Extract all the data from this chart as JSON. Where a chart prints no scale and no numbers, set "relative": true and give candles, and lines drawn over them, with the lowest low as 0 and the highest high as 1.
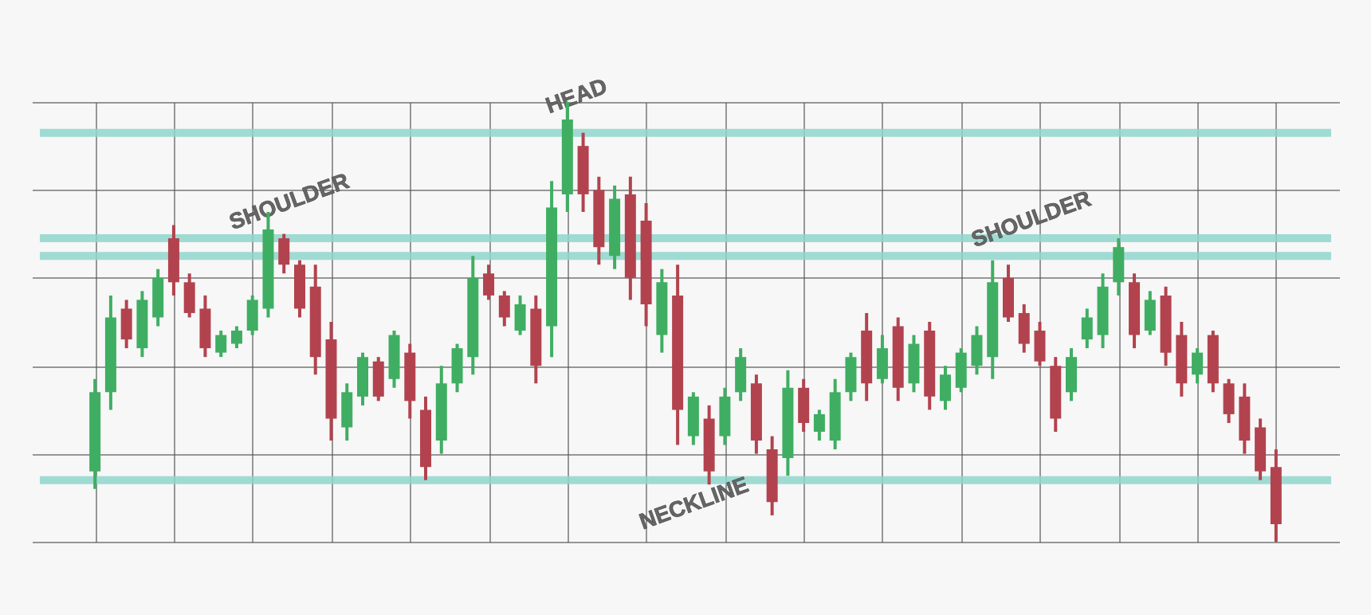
{
  "chart_data": {
    "type": "candlestick",
    "relative": true,
    "grid": true,
    "tick_labels": false,
    "categories": [
      null,
      null,
      null,
      null,
      null,
      null,
      null,
      null,
      null,
      null,
      null,
      null,
      null,
      null,
      null,
      null,
      null,
      null,
      null,
      null,
      null,
      null,
      null,
      null,
      null,
      null,
      null,
      null,
      null,
      null,
      null,
      null,
      null,
      null,
      null,
      null,
      null,
      null,
      null,
      null,
      null,
      null,
      null,
      null,
      null,
      null,
      null,
      null,
      null,
      null,
      null,
      null,
      null,
      null,
      null,
      null,
      null,
      null,
      null,
      null,
      null,
      null,
      null,
      null,
      null,
      null,
      null,
      null,
      null,
      null,
      null,
      null,
      null,
      null,
      null,
      null
    ],
    "ohlc": [
      [
        0.16,
        0.37,
        0.12,
        0.34
      ],
      [
        0.34,
        0.56,
        0.3,
        0.51
      ],
      [
        0.53,
        0.55,
        0.44,
        0.46
      ],
      [
        0.44,
        0.57,
        0.42,
        0.55
      ],
      [
        0.51,
        0.62,
        0.49,
        0.6
      ],
      [
        0.69,
        0.72,
        0.56,
        0.59
      ],
      [
        0.59,
        0.61,
        0.51,
        0.52
      ],
      [
        0.53,
        0.56,
        0.42,
        0.44
      ],
      [
        0.43,
        0.48,
        0.42,
        0.47
      ],
      [
        0.45,
        0.49,
        0.44,
        0.48
      ],
      [
        0.48,
        0.56,
        0.47,
        0.55
      ],
      [
        0.53,
        0.75,
        0.51,
        0.71
      ],
      [
        0.69,
        0.7,
        0.61,
        0.63
      ],
      [
        0.63,
        0.64,
        0.51,
        0.53
      ],
      [
        0.58,
        0.63,
        0.38,
        0.42
      ],
      [
        0.46,
        0.5,
        0.23,
        0.28
      ],
      [
        0.26,
        0.36,
        0.23,
        0.34
      ],
      [
        0.33,
        0.43,
        0.31,
        0.42
      ],
      [
        0.41,
        0.42,
        0.32,
        0.33
      ],
      [
        0.37,
        0.48,
        0.35,
        0.47
      ],
      [
        0.43,
        0.45,
        0.28,
        0.32
      ],
      [
        0.3,
        0.33,
        0.14,
        0.17
      ],
      [
        0.23,
        0.4,
        0.2,
        0.36
      ],
      [
        0.36,
        0.45,
        0.34,
        0.44
      ],
      [
        0.42,
        0.65,
        0.38,
        0.6
      ],
      [
        0.61,
        0.63,
        0.55,
        0.56
      ],
      [
        0.56,
        0.57,
        0.49,
        0.51
      ],
      [
        0.48,
        0.56,
        0.47,
        0.54
      ],
      [
        0.53,
        0.56,
        0.36,
        0.4
      ],
      [
        0.49,
        0.82,
        0.42,
        0.76
      ],
      [
        0.79,
        1.0,
        0.75,
        0.96
      ],
      [
        0.9,
        0.93,
        0.75,
        0.79
      ],
      [
        0.8,
        0.83,
        0.63,
        0.67
      ],
      [
        0.65,
        0.81,
        0.62,
        0.78
      ],
      [
        0.79,
        0.83,
        0.55,
        0.6
      ],
      [
        0.73,
        0.77,
        0.49,
        0.54
      ],
      [
        0.47,
        0.62,
        0.43,
        0.59
      ],
      [
        0.56,
        0.63,
        0.22,
        0.3
      ],
      [
        0.24,
        0.34,
        0.22,
        0.33
      ],
      [
        0.28,
        0.31,
        0.13,
        0.16
      ],
      [
        0.24,
        0.35,
        0.22,
        0.33
      ],
      [
        0.34,
        0.44,
        0.32,
        0.42
      ],
      [
        0.36,
        0.38,
        0.2,
        0.23
      ],
      [
        0.21,
        0.24,
        0.06,
        0.09
      ],
      [
        0.19,
        0.39,
        0.15,
        0.35
      ],
      [
        0.35,
        0.37,
        0.25,
        0.27
      ],
      [
        0.25,
        0.3,
        0.23,
        0.29
      ],
      [
        0.23,
        0.37,
        0.21,
        0.34
      ],
      [
        0.34,
        0.43,
        0.32,
        0.42
      ],
      [
        0.48,
        0.52,
        0.32,
        0.36
      ],
      [
        0.37,
        0.47,
        0.36,
        0.44
      ],
      [
        0.49,
        0.51,
        0.32,
        0.35
      ],
      [
        0.36,
        0.47,
        0.34,
        0.45
      ],
      [
        0.48,
        0.5,
        0.3,
        0.33
      ],
      [
        0.32,
        0.4,
        0.3,
        0.38
      ],
      [
        0.35,
        0.44,
        0.34,
        0.43
      ],
      [
        0.4,
        0.49,
        0.38,
        0.47
      ],
      [
        0.42,
        0.64,
        0.37,
        0.59
      ],
      [
        0.6,
        0.63,
        0.5,
        0.51
      ],
      [
        0.52,
        0.54,
        0.43,
        0.45
      ],
      [
        0.48,
        0.5,
        0.4,
        0.41
      ],
      [
        0.4,
        0.42,
        0.25,
        0.28
      ],
      [
        0.34,
        0.44,
        0.32,
        0.42
      ],
      [
        0.46,
        0.53,
        0.44,
        0.51
      ],
      [
        0.47,
        0.61,
        0.44,
        0.58
      ],
      [
        0.59,
        0.69,
        0.56,
        0.67
      ],
      [
        0.59,
        0.61,
        0.44,
        0.47
      ],
      [
        0.48,
        0.57,
        0.47,
        0.55
      ],
      [
        0.56,
        0.58,
        0.4,
        0.43
      ],
      [
        0.47,
        0.5,
        0.33,
        0.36
      ],
      [
        0.38,
        0.44,
        0.36,
        0.43
      ],
      [
        0.47,
        0.48,
        0.34,
        0.36
      ],
      [
        0.36,
        0.37,
        0.27,
        0.29
      ],
      [
        0.33,
        0.36,
        0.2,
        0.23
      ],
      [
        0.26,
        0.28,
        0.14,
        0.16
      ],
      [
        0.17,
        0.21,
        0.0,
        0.04
      ]
    ],
    "colors": [
      "#3fae62",
      "#3fae62",
      "#b2434e",
      "#3fae62",
      "#3fae62",
      "#b2434e",
      "#b2434e",
      "#b2434e",
      "#3fae62",
      "#3fae62",
      "#3fae62",
      "#3fae62",
      "#b2434e",
      "#b2434e",
      "#b2434e",
      "#b2434e",
      "#3fae62",
      "#3fae62",
      "#b2434e",
      "#3fae62",
      "#b2434e",
      "#b2434e",
      "#3fae62",
      "#3fae62",
      "#3fae62",
      "#b2434e",
      "#b2434e",
      "#3fae62",
      "#b2434e",
      "#3fae62",
      "#3fae62",
      "#b2434e",
      "#b2434e",
      "#3fae62",
      "#b2434e",
      "#b2434e",
      "#3fae62",
      "#b2434e",
      "#3fae62",
      "#b2434e",
      "#3fae62",
      "#3fae62",
      "#b2434e",
      "#b2434e",
      "#3fae62",
      "#b2434e",
      "#3fae62",
      "#3fae62",
      "#3fae62",
      "#b2434e",
      "#3fae62",
      "#b2434e",
      "#3fae62",
      "#b2434e",
      "#3fae62",
      "#3fae62",
      "#3fae62",
      "#3fae62",
      "#b2434e",
      "#b2434e",
      "#b2434e",
      "#b2434e",
      "#3fae62",
      "#3fae62",
      "#3fae62",
      "#3fae62",
      "#b2434e",
      "#3fae62",
      "#b2434e",
      "#b2434e",
      "#3fae62",
      "#b2434e",
      "#b2434e",
      "#b2434e",
      "#b2434e",
      "#b2434e"
    ],
    "ref_lines": [
      {
        "axis": "y",
        "value": 0.69,
        "label": "SHOULDER",
        "color": "#8fd6cc"
      },
      {
        "axis": "y",
        "value": 0.93,
        "label": "HEAD",
        "color": "#8fd6cc"
      },
      {
        "axis": "y",
        "value": 0.65,
        "label": "SHOULDER",
        "color": "#8fd6cc"
      },
      {
        "axis": "y",
        "value": 0.14,
        "label": "NECKLINE",
        "color": "#8fd6cc"
      }
    ]
  }
}
